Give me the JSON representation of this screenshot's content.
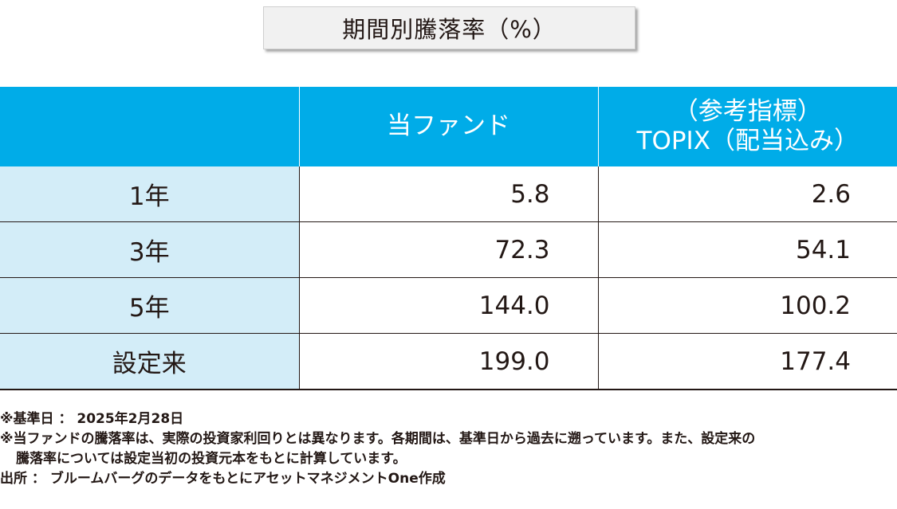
{
  "title": "期間別騰落率（%）",
  "table": {
    "headers": {
      "col1": "",
      "fund": "当ファンド",
      "benchmark_line1": "（参考指標）",
      "benchmark_line2": "TOPIX（配当込み）"
    },
    "rows": [
      {
        "period": "1年",
        "fund": "5.8",
        "benchmark": "2.6"
      },
      {
        "period": "3年",
        "fund": "72.3",
        "benchmark": "54.1"
      },
      {
        "period": "5年",
        "fund": "144.0",
        "benchmark": "100.2"
      },
      {
        "period": "設定来",
        "fund": "199.0",
        "benchmark": "177.4"
      }
    ]
  },
  "notes": {
    "base_date": "※基準日 ： 2025年2月28日",
    "note1_line1": "※当ファンドの騰落率は、実際の投資家利回りとは異なります。各期間は、基準日から過去に遡っています。また、設定来の",
    "note1_line2": "騰落率については設定当初の投資元本をもとに計算しています。",
    "source": "出所 ： ブルームバーグのデータをもとにアセットマネジメントOne作成"
  },
  "colors": {
    "header_bg": "#00ace8",
    "label_bg": "#d3edf8",
    "title_bg": "#f1f1f1"
  }
}
